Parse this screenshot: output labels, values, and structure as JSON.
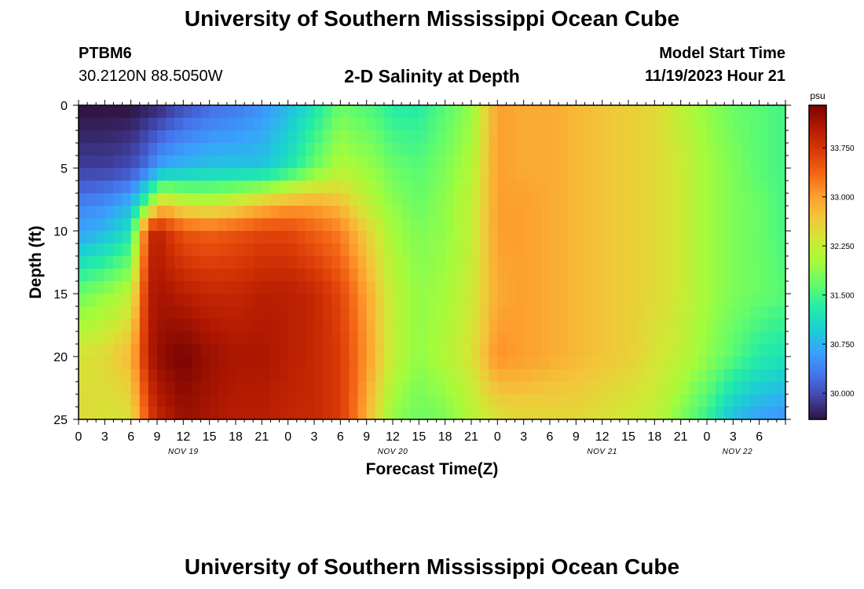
{
  "header": {
    "title": "University of Southern Mississippi Ocean Cube",
    "station_id": "PTBM6",
    "coords": "30.2120N  88.5050W",
    "plot_title": "2-D Salinity at Depth",
    "model_start_label": "Model Start Time",
    "model_start_value": "11/19/2023 Hour 21"
  },
  "footer": {
    "title": "University of Southern Mississippi Ocean Cube"
  },
  "colors": {
    "colormap": [
      "#30123b",
      "#4145ab",
      "#4675ed",
      "#39a2fc",
      "#1bcfd4",
      "#24eca6",
      "#61fc6c",
      "#a4fc3b",
      "#d1e834",
      "#f3c63a",
      "#fe9b2d",
      "#f36315",
      "#d93806",
      "#b11901",
      "#7a0402"
    ]
  },
  "chart_data": {
    "type": "heatmap",
    "title": "2-D Salinity at Depth",
    "xlabel": "Forecast Time(Z)",
    "ylabel": "Depth (ft)",
    "colorbar_label": "psu",
    "x_range_hours": [
      0,
      81
    ],
    "y_range_ft": [
      0,
      25
    ],
    "x_tick_labels": [
      "0",
      "3",
      "6",
      "9",
      "12",
      "15",
      "18",
      "21",
      "0",
      "3",
      "6",
      "9",
      "12",
      "15",
      "18",
      "21",
      "0",
      "3",
      "6",
      "9",
      "12",
      "15",
      "18",
      "21",
      "0",
      "3",
      "6"
    ],
    "date_labels": [
      {
        "label": "NOV 19",
        "hour": 12
      },
      {
        "label": "NOV 20",
        "hour": 36
      },
      {
        "label": "NOV 21",
        "hour": 60
      },
      {
        "label": "NOV 22",
        "hour": 75.5
      }
    ],
    "y_ticks": [
      0,
      5,
      10,
      15,
      20,
      25
    ],
    "colorbar_range": [
      29.6,
      34.4
    ],
    "colorbar_ticks": [
      "30.000",
      "30.750",
      "31.500",
      "32.250",
      "33.000",
      "33.750"
    ],
    "colorbar_tick_values": [
      30.0,
      30.75,
      31.5,
      32.25,
      33.0,
      33.75
    ],
    "depth_rows_ft": [
      0,
      5,
      8,
      10,
      15,
      20,
      25
    ],
    "hours": [
      0,
      3,
      6,
      8,
      9,
      10,
      12,
      15,
      18,
      21,
      24,
      27,
      30,
      32,
      34,
      36,
      39,
      42,
      45,
      48,
      51,
      54,
      57,
      60,
      63,
      66,
      69,
      72,
      75,
      78,
      81
    ],
    "salinity_psu": [
      [
        29.6,
        29.6,
        29.6,
        29.7,
        29.7,
        29.8,
        30.0,
        30.2,
        30.3,
        30.5,
        30.8,
        31.2,
        31.7,
        31.6,
        31.5,
        31.3,
        31.3,
        31.6,
        31.9,
        33.0,
        32.9,
        32.9,
        32.8,
        32.7,
        32.6,
        32.5,
        32.2,
        31.9,
        31.7,
        31.6,
        31.5
      ],
      [
        29.9,
        29.9,
        30.0,
        30.3,
        30.6,
        30.7,
        30.8,
        30.9,
        30.9,
        30.9,
        31.2,
        31.7,
        32.1,
        32.0,
        31.9,
        31.7,
        31.6,
        31.8,
        32.1,
        33.0,
        32.9,
        32.9,
        32.8,
        32.7,
        32.6,
        32.5,
        32.3,
        32.0,
        31.8,
        31.6,
        31.5
      ],
      [
        30.4,
        30.5,
        30.8,
        31.8,
        32.6,
        32.7,
        32.4,
        32.3,
        32.5,
        32.8,
        33.0,
        33.0,
        32.8,
        32.4,
        32.1,
        31.9,
        31.7,
        31.9,
        32.2,
        33.0,
        33.0,
        32.9,
        32.8,
        32.7,
        32.6,
        32.5,
        32.3,
        32.0,
        31.8,
        31.7,
        31.5
      ],
      [
        30.6,
        30.8,
        31.2,
        33.8,
        34.0,
        33.8,
        33.5,
        33.4,
        33.5,
        33.6,
        33.6,
        33.4,
        33.2,
        32.8,
        32.4,
        32.0,
        31.8,
        31.9,
        32.2,
        33.0,
        33.0,
        32.9,
        32.8,
        32.7,
        32.6,
        32.5,
        32.3,
        32.0,
        31.8,
        31.7,
        31.5
      ],
      [
        31.7,
        31.9,
        32.2,
        34.0,
        34.1,
        34.1,
        34.0,
        33.9,
        33.9,
        34.0,
        34.0,
        33.9,
        33.6,
        33.2,
        32.7,
        32.2,
        31.9,
        32.0,
        32.3,
        32.9,
        33.0,
        32.9,
        32.8,
        32.7,
        32.6,
        32.5,
        32.3,
        32.0,
        31.8,
        31.7,
        31.6
      ],
      [
        32.4,
        32.5,
        32.8,
        34.0,
        34.2,
        34.3,
        34.4,
        34.2,
        34.1,
        34.1,
        34.0,
        33.9,
        33.7,
        33.3,
        32.8,
        32.2,
        31.9,
        32.1,
        32.4,
        33.1,
        33.0,
        32.9,
        32.8,
        32.7,
        32.6,
        32.4,
        32.2,
        31.9,
        31.6,
        31.3,
        31.2
      ],
      [
        32.5,
        32.4,
        32.4,
        33.6,
        33.9,
        34.0,
        34.2,
        34.1,
        34.0,
        34.0,
        33.9,
        33.9,
        33.7,
        33.2,
        32.5,
        31.9,
        31.7,
        31.8,
        32.1,
        32.4,
        32.5,
        32.5,
        32.5,
        32.4,
        32.3,
        32.2,
        31.8,
        31.4,
        30.8,
        30.6,
        30.5
      ]
    ]
  }
}
